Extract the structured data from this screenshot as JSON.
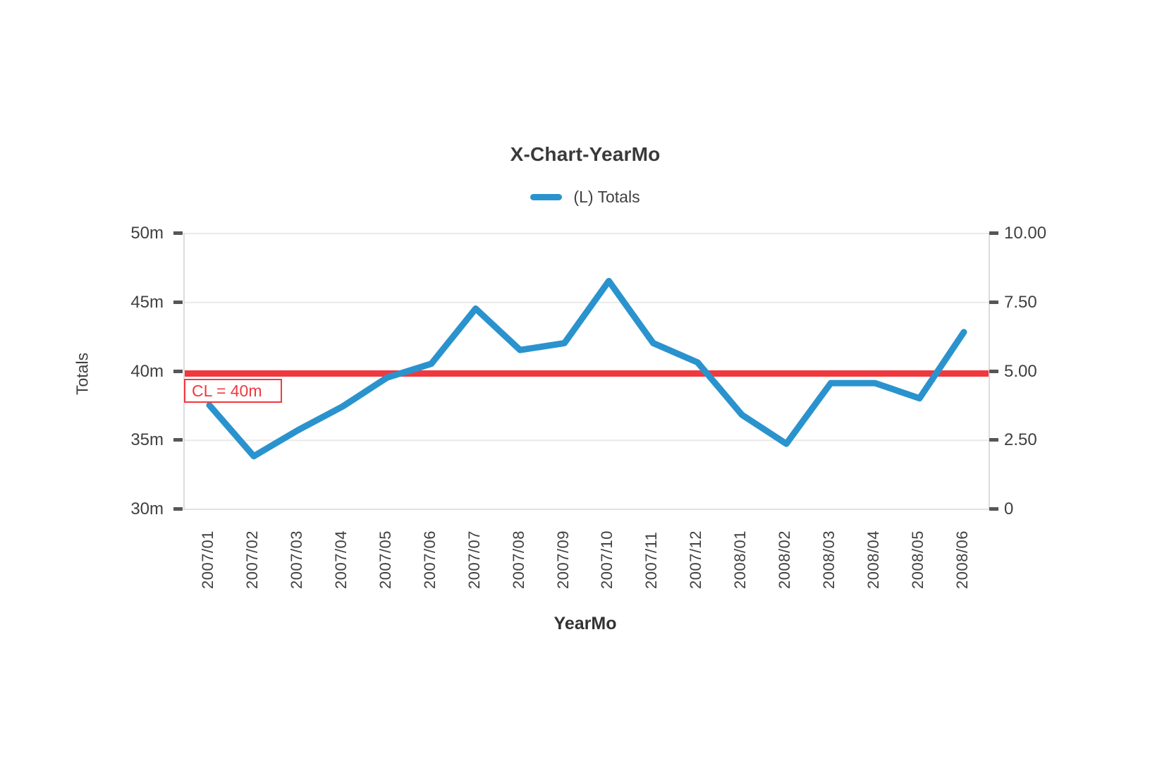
{
  "chart": {
    "title": "X-Chart-YearMo",
    "legend": {
      "items": [
        {
          "label": "(L) Totals"
        }
      ]
    },
    "x_axis": {
      "title": "YearMo"
    },
    "y_axis_left": {
      "title": "Totals"
    },
    "control_line": {
      "label": "CL = 40m"
    }
  },
  "colors": {
    "series_blue": "#2a93ce",
    "control_red": "#f0393f",
    "grid": "#e9e9e9",
    "tick_dash": "#565656",
    "text": "#404040"
  },
  "chart_data": {
    "type": "line",
    "title": "X-Chart-YearMo",
    "xlabel": "YearMo",
    "ylabel": "Totals",
    "categories": [
      "2007/01",
      "2007/02",
      "2007/03",
      "2007/04",
      "2007/05",
      "2007/06",
      "2007/07",
      "2007/08",
      "2007/09",
      "2007/10",
      "2007/11",
      "2007/12",
      "2008/01",
      "2008/02",
      "2008/03",
      "2008/04",
      "2008/05",
      "2008/06"
    ],
    "series": [
      {
        "name": "(L) Totals",
        "color": "#2a93ce",
        "values": [
          37.5,
          33.8,
          35.7,
          37.4,
          39.5,
          40.5,
          44.5,
          41.5,
          42.0,
          46.5,
          42.0,
          40.6,
          36.8,
          34.7,
          39.1,
          39.1,
          38.0,
          42.8
        ]
      }
    ],
    "reference_line": {
      "label": "CL = 40m",
      "value": 40,
      "color": "#f0393f"
    },
    "ylim_left": [
      30,
      50
    ],
    "ylim_right": [
      0,
      10
    ],
    "yticks_left": [
      "50m",
      "45m",
      "40m",
      "35m",
      "30m"
    ],
    "yticks_right": [
      "10.00",
      "7.50",
      "5.00",
      "2.50",
      "0"
    ],
    "grid": true,
    "legend_position": "top-center"
  }
}
